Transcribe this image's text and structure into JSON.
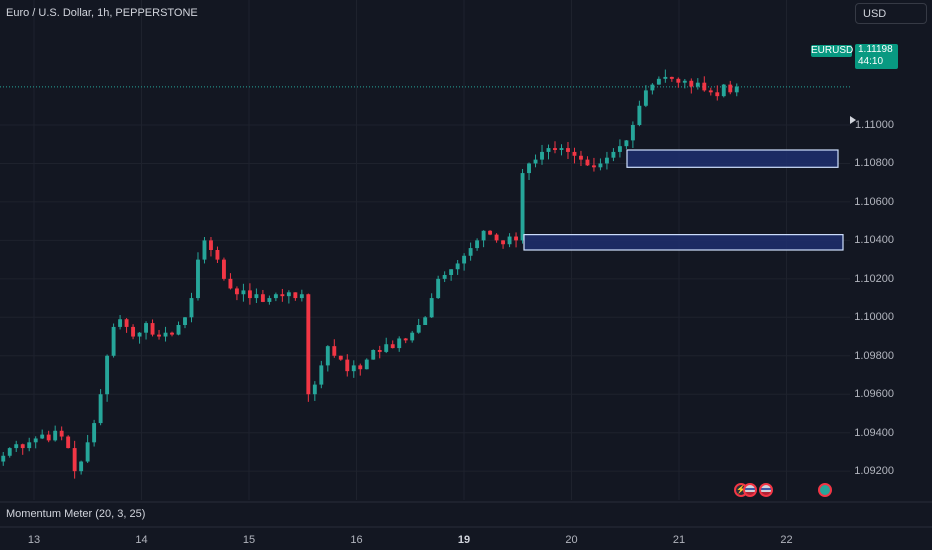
{
  "header": {
    "symbol_title": "Euro / U.S. Dollar, 1h, PEPPERSTONE",
    "currency_button": "USD"
  },
  "price_scale": {
    "labels": [
      "1.11000",
      "1.10800",
      "1.10600",
      "1.10400",
      "1.10200",
      "1.10000",
      "1.09800",
      "1.09600",
      "1.09400",
      "1.09200"
    ],
    "symbol_tag": "EURUSD",
    "last_price": "1.11198",
    "countdown": "44:10"
  },
  "indicator": {
    "name": "Momentum Meter (20, 3, 25)"
  },
  "time_axis": {
    "labels": [
      {
        "text": "13",
        "bold": false
      },
      {
        "text": "14",
        "bold": false
      },
      {
        "text": "15",
        "bold": false
      },
      {
        "text": "16",
        "bold": false
      },
      {
        "text": "19",
        "bold": true
      },
      {
        "text": "20",
        "bold": false
      },
      {
        "text": "21",
        "bold": false
      },
      {
        "text": "22",
        "bold": false
      }
    ]
  },
  "colors": {
    "up": "#26a69a",
    "down": "#f23645",
    "zone_fill": "#1e2f6e",
    "zone_border": "#cfe0ff"
  },
  "icons": {
    "play": "play-triangle-icon",
    "events": [
      "lightning-icon",
      "us-flag-icon",
      "globe-icon"
    ]
  },
  "chart_data": {
    "type": "candlestick",
    "symbol": "EURUSD",
    "timeframe": "1h",
    "ylim": [
      1.0905,
      1.1165
    ],
    "last_price": 1.11198,
    "x_days": [
      "13",
      "14",
      "15",
      "16",
      "19",
      "20",
      "21",
      "22"
    ],
    "closes": [
      1.0928,
      1.0932,
      1.0934,
      1.0932,
      1.0935,
      1.0937,
      1.0939,
      1.0936,
      1.0941,
      1.0938,
      1.0932,
      1.092,
      1.0925,
      1.0935,
      1.0945,
      1.096,
      1.098,
      1.0995,
      1.0999,
      1.0995,
      1.099,
      1.0992,
      1.0997,
      1.0991,
      1.099,
      1.0992,
      1.0991,
      1.0996,
      1.1,
      1.101,
      1.103,
      1.104,
      1.1035,
      1.103,
      1.102,
      1.1015,
      1.1012,
      1.1014,
      1.101,
      1.1012,
      1.1008,
      1.101,
      1.1012,
      1.1011,
      1.1013,
      1.101,
      1.1012,
      1.096,
      1.0965,
      1.0975,
      1.0985,
      1.098,
      1.0978,
      1.0972,
      1.0975,
      1.0973,
      1.0978,
      1.0983,
      1.0982,
      1.0986,
      1.0984,
      1.0989,
      1.0988,
      1.0992,
      1.0996,
      1.1,
      1.101,
      1.102,
      1.1022,
      1.1025,
      1.1028,
      1.1032,
      1.1036,
      1.104,
      1.1045,
      1.1043,
      1.104,
      1.1038,
      1.1042,
      1.104,
      1.1075,
      1.108,
      1.1082,
      1.1086,
      1.1088,
      1.1087,
      1.1088,
      1.1086,
      1.1084,
      1.1082,
      1.1079,
      1.1078,
      1.108,
      1.1083,
      1.1086,
      1.1089,
      1.1092,
      1.11,
      1.111,
      1.1118,
      1.1121,
      1.1124,
      1.1125,
      1.1124,
      1.1122,
      1.1123,
      1.112,
      1.1122,
      1.1118,
      1.1117,
      1.1115,
      1.1121,
      1.1117,
      1.112
    ],
    "zones": [
      {
        "name": "upper-zone",
        "from": 1.1078,
        "to": 1.1087
      },
      {
        "name": "lower-zone",
        "from": 1.1035,
        "to": 1.1043
      }
    ],
    "grid": true
  }
}
